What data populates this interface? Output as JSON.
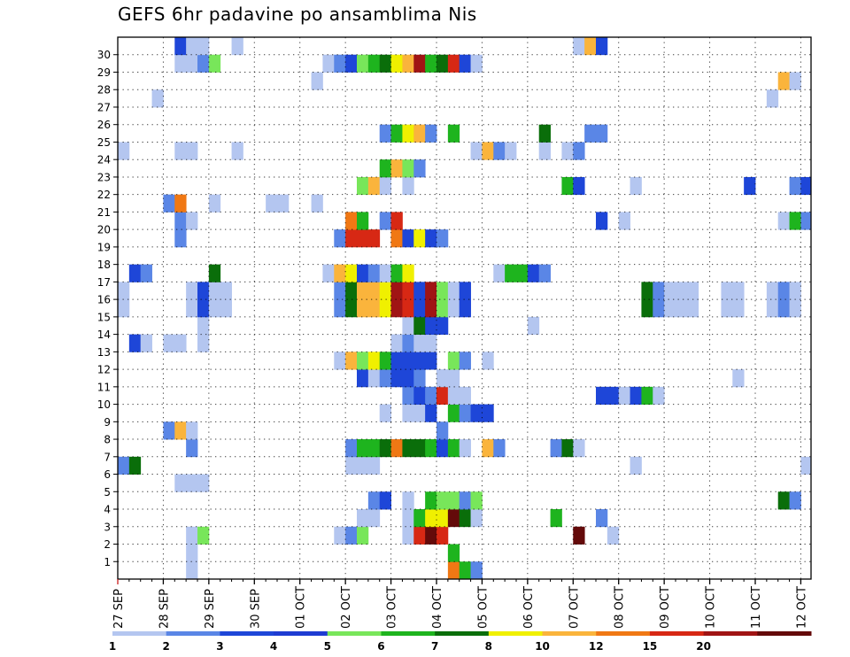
{
  "chart_data": {
    "type": "heatmap",
    "title": "GEFS 6hr padavine po ansamblima Nis",
    "y_ticks": [
      "1",
      "2",
      "3",
      "4",
      "5",
      "6",
      "7",
      "8",
      "9",
      "10",
      "11",
      "12",
      "13",
      "14",
      "15",
      "16",
      "17",
      "18",
      "19",
      "20",
      "21",
      "22",
      "23",
      "24",
      "25",
      "26",
      "27",
      "28",
      "29",
      "30"
    ],
    "x_ticks": [
      "27 SEP",
      "28 SEP",
      "29 SEP",
      "30 SEP",
      "01 OCT",
      "02 OCT",
      "03 OCT",
      "04 OCT",
      "05 OCT",
      "06 OCT",
      "07 OCT",
      "08 OCT",
      "09 OCT",
      "10 OCT",
      "11 OCT",
      "12 OCT"
    ],
    "x_step_hours": 6,
    "rows_count": 31,
    "cols_count": 61,
    "legend": {
      "labels": [
        "1",
        "2",
        "3",
        "4",
        "5",
        "6",
        "7",
        "8",
        "10",
        "12",
        "15",
        "20"
      ],
      "colors": [
        "#b4c6f0",
        "#5a86e6",
        "#1e46d8",
        "#1e3cd2",
        "#78e65a",
        "#1eb41e",
        "#0a6e0a",
        "#f0f000",
        "#fab43c",
        "#f07814",
        "#d72814",
        "#a01414",
        "#640a0a"
      ]
    },
    "color_levels": {
      "1": "#b4c6f0",
      "2": "#5a86e6",
      "3": "#1e46d8",
      "4": "#78e65a",
      "5": "#1eb41e",
      "6": "#0a6e0a",
      "7": "#f0f000",
      "8": "#fab43c",
      "9": "#f07814",
      "10": "#d72814",
      "11": "#a01414",
      "12": "#640a0a"
    },
    "cells": [
      [
        0,
        6,
        1,
        1
      ],
      [
        0,
        29,
        1,
        9
      ],
      [
        0,
        30,
        1,
        5
      ],
      [
        0,
        31,
        1,
        2
      ],
      [
        1,
        6,
        1,
        1
      ],
      [
        1,
        29,
        1,
        5
      ],
      [
        2,
        6,
        1,
        1
      ],
      [
        2,
        7,
        1,
        4
      ],
      [
        2,
        19,
        1,
        1
      ],
      [
        2,
        20,
        1,
        2
      ],
      [
        2,
        21,
        1,
        4
      ],
      [
        2,
        25,
        1,
        1
      ],
      [
        2,
        26,
        1,
        10
      ],
      [
        2,
        27,
        1,
        12
      ],
      [
        2,
        28,
        1,
        10
      ],
      [
        2,
        40,
        1,
        12
      ],
      [
        2,
        43,
        1,
        1
      ],
      [
        3,
        21,
        1,
        1
      ],
      [
        3,
        22,
        1,
        1
      ],
      [
        3,
        25,
        1,
        1
      ],
      [
        3,
        26,
        1,
        5
      ],
      [
        3,
        27,
        1,
        7
      ],
      [
        3,
        28,
        1,
        7
      ],
      [
        3,
        29,
        1,
        12
      ],
      [
        3,
        30,
        1,
        6
      ],
      [
        3,
        31,
        1,
        1
      ],
      [
        3,
        38,
        1,
        5
      ],
      [
        3,
        42,
        1,
        2
      ],
      [
        4,
        22,
        1,
        2
      ],
      [
        4,
        23,
        1,
        3
      ],
      [
        4,
        25,
        1,
        1
      ],
      [
        4,
        27,
        1,
        5
      ],
      [
        4,
        28,
        1,
        4
      ],
      [
        4,
        29,
        1,
        4
      ],
      [
        4,
        30,
        1,
        2
      ],
      [
        4,
        31,
        1,
        4
      ],
      [
        4,
        58,
        1,
        6
      ],
      [
        4,
        59,
        1,
        2
      ],
      [
        5,
        5,
        3,
        1
      ],
      [
        6,
        0,
        1,
        2
      ],
      [
        6,
        1,
        1,
        6
      ],
      [
        6,
        20,
        3,
        1
      ],
      [
        6,
        45,
        1,
        1
      ],
      [
        6,
        60,
        1,
        1
      ],
      [
        7,
        6,
        1,
        2
      ],
      [
        7,
        20,
        1,
        2
      ],
      [
        7,
        21,
        1,
        5
      ],
      [
        7,
        22,
        1,
        5
      ],
      [
        7,
        23,
        1,
        6
      ],
      [
        7,
        24,
        1,
        9
      ],
      [
        7,
        25,
        1,
        6
      ],
      [
        7,
        26,
        1,
        6
      ],
      [
        7,
        27,
        1,
        5
      ],
      [
        7,
        28,
        1,
        3
      ],
      [
        7,
        29,
        1,
        5
      ],
      [
        7,
        30,
        1,
        1
      ],
      [
        7,
        32,
        1,
        8
      ],
      [
        7,
        33,
        1,
        2
      ],
      [
        7,
        38,
        1,
        2
      ],
      [
        7,
        39,
        1,
        6
      ],
      [
        7,
        40,
        1,
        1
      ],
      [
        8,
        4,
        1,
        2
      ],
      [
        8,
        5,
        1,
        8
      ],
      [
        8,
        6,
        1,
        1
      ],
      [
        8,
        28,
        1,
        2
      ],
      [
        9,
        23,
        1,
        1
      ],
      [
        9,
        25,
        2,
        1
      ],
      [
        9,
        27,
        1,
        3
      ],
      [
        9,
        29,
        1,
        5
      ],
      [
        9,
        30,
        1,
        2
      ],
      [
        9,
        31,
        2,
        3
      ],
      [
        10,
        25,
        1,
        2
      ],
      [
        10,
        26,
        1,
        3
      ],
      [
        10,
        27,
        1,
        2
      ],
      [
        10,
        28,
        1,
        10
      ],
      [
        10,
        29,
        2,
        1
      ],
      [
        10,
        42,
        2,
        3
      ],
      [
        10,
        44,
        1,
        1
      ],
      [
        10,
        45,
        1,
        3
      ],
      [
        10,
        46,
        1,
        5
      ],
      [
        10,
        47,
        1,
        1
      ],
      [
        11,
        21,
        1,
        3
      ],
      [
        11,
        22,
        1,
        1
      ],
      [
        11,
        23,
        1,
        2
      ],
      [
        11,
        24,
        1,
        3
      ],
      [
        11,
        25,
        1,
        3
      ],
      [
        11,
        26,
        1,
        2
      ],
      [
        11,
        28,
        2,
        1
      ],
      [
        11,
        54,
        1,
        1
      ],
      [
        12,
        19,
        1,
        1
      ],
      [
        12,
        20,
        1,
        8
      ],
      [
        12,
        21,
        1,
        4
      ],
      [
        12,
        22,
        1,
        7
      ],
      [
        12,
        23,
        1,
        5
      ],
      [
        12,
        24,
        1,
        3
      ],
      [
        12,
        25,
        3,
        3
      ],
      [
        12,
        29,
        1,
        4
      ],
      [
        12,
        30,
        1,
        2
      ],
      [
        12,
        32,
        1,
        1
      ],
      [
        13,
        1,
        1,
        3
      ],
      [
        13,
        2,
        1,
        1
      ],
      [
        13,
        4,
        2,
        1
      ],
      [
        13,
        7,
        1,
        1
      ],
      [
        13,
        24,
        1,
        1
      ],
      [
        13,
        25,
        1,
        2
      ],
      [
        13,
        26,
        2,
        1
      ],
      [
        14,
        7,
        1,
        1
      ],
      [
        14,
        25,
        1,
        1
      ],
      [
        14,
        26,
        1,
        6
      ],
      [
        14,
        27,
        2,
        3
      ],
      [
        14,
        36,
        1,
        1
      ],
      [
        15,
        0,
        1,
        1
      ],
      [
        15,
        6,
        1,
        1
      ],
      [
        15,
        7,
        1,
        3
      ],
      [
        15,
        8,
        2,
        1
      ],
      [
        15,
        19,
        1,
        2
      ],
      [
        15,
        20,
        1,
        6
      ],
      [
        15,
        21,
        2,
        8
      ],
      [
        15,
        23,
        1,
        7
      ],
      [
        15,
        24,
        1,
        11
      ],
      [
        15,
        25,
        1,
        10
      ],
      [
        15,
        26,
        1,
        3
      ],
      [
        15,
        27,
        1,
        11
      ],
      [
        15,
        28,
        1,
        4
      ],
      [
        15,
        29,
        1,
        1
      ],
      [
        15,
        30,
        1,
        3
      ],
      [
        15,
        46,
        1,
        6
      ],
      [
        15,
        47,
        1,
        2
      ],
      [
        15,
        48,
        3,
        1
      ],
      [
        15,
        53,
        2,
        1
      ],
      [
        15,
        57,
        1,
        1
      ],
      [
        15,
        58,
        1,
        2
      ],
      [
        15,
        59,
        1,
        1
      ],
      [
        16,
        0,
        1,
        1
      ],
      [
        16,
        6,
        1,
        1
      ],
      [
        16,
        7,
        1,
        3
      ],
      [
        16,
        8,
        2,
        1
      ],
      [
        16,
        19,
        1,
        2
      ],
      [
        16,
        20,
        1,
        6
      ],
      [
        16,
        21,
        2,
        8
      ],
      [
        16,
        23,
        1,
        7
      ],
      [
        16,
        24,
        1,
        11
      ],
      [
        16,
        25,
        1,
        10
      ],
      [
        16,
        26,
        1,
        3
      ],
      [
        16,
        27,
        1,
        11
      ],
      [
        16,
        28,
        1,
        4
      ],
      [
        16,
        29,
        1,
        1
      ],
      [
        16,
        30,
        1,
        3
      ],
      [
        16,
        46,
        1,
        6
      ],
      [
        16,
        47,
        1,
        2
      ],
      [
        16,
        48,
        3,
        1
      ],
      [
        16,
        53,
        2,
        1
      ],
      [
        16,
        57,
        1,
        1
      ],
      [
        16,
        58,
        1,
        2
      ],
      [
        16,
        59,
        1,
        1
      ],
      [
        17,
        1,
        1,
        3
      ],
      [
        17,
        2,
        1,
        2
      ],
      [
        17,
        8,
        1,
        6
      ],
      [
        17,
        18,
        1,
        1
      ],
      [
        17,
        19,
        1,
        8
      ],
      [
        17,
        20,
        1,
        7
      ],
      [
        17,
        21,
        1,
        3
      ],
      [
        17,
        22,
        1,
        2
      ],
      [
        17,
        23,
        1,
        1
      ],
      [
        17,
        24,
        1,
        5
      ],
      [
        17,
        25,
        1,
        7
      ],
      [
        17,
        33,
        1,
        1
      ],
      [
        17,
        34,
        2,
        5
      ],
      [
        17,
        36,
        1,
        3
      ],
      [
        17,
        37,
        1,
        2
      ],
      [
        19,
        5,
        1,
        2
      ],
      [
        19,
        19,
        1,
        2
      ],
      [
        19,
        20,
        3,
        10
      ],
      [
        19,
        24,
        1,
        9
      ],
      [
        19,
        25,
        1,
        3
      ],
      [
        19,
        26,
        1,
        7
      ],
      [
        19,
        27,
        1,
        3
      ],
      [
        19,
        28,
        1,
        2
      ],
      [
        20,
        5,
        1,
        2
      ],
      [
        20,
        6,
        1,
        1
      ],
      [
        20,
        20,
        1,
        9
      ],
      [
        20,
        21,
        1,
        5
      ],
      [
        20,
        23,
        1,
        2
      ],
      [
        20,
        24,
        1,
        10
      ],
      [
        20,
        42,
        1,
        3
      ],
      [
        20,
        44,
        1,
        1
      ],
      [
        20,
        58,
        1,
        1
      ],
      [
        20,
        59,
        1,
        5
      ],
      [
        20,
        60,
        1,
        2
      ],
      [
        21,
        4,
        1,
        2
      ],
      [
        21,
        5,
        1,
        9
      ],
      [
        21,
        8,
        1,
        1
      ],
      [
        21,
        13,
        2,
        1
      ],
      [
        21,
        17,
        1,
        1
      ],
      [
        22,
        21,
        1,
        4
      ],
      [
        22,
        22,
        1,
        8
      ],
      [
        22,
        23,
        1,
        1
      ],
      [
        22,
        25,
        1,
        1
      ],
      [
        22,
        39,
        1,
        5
      ],
      [
        22,
        40,
        1,
        3
      ],
      [
        22,
        45,
        1,
        1
      ],
      [
        22,
        55,
        1,
        3
      ],
      [
        22,
        59,
        1,
        2
      ],
      [
        22,
        60,
        1,
        3
      ],
      [
        23,
        23,
        1,
        5
      ],
      [
        23,
        24,
        1,
        8
      ],
      [
        23,
        25,
        1,
        4
      ],
      [
        23,
        26,
        1,
        2
      ],
      [
        24,
        0,
        1,
        1
      ],
      [
        24,
        5,
        2,
        1
      ],
      [
        24,
        10,
        1,
        1
      ],
      [
        24,
        31,
        1,
        1
      ],
      [
        24,
        32,
        1,
        8
      ],
      [
        24,
        33,
        1,
        2
      ],
      [
        24,
        34,
        1,
        1
      ],
      [
        24,
        37,
        1,
        1
      ],
      [
        24,
        39,
        1,
        1
      ],
      [
        24,
        40,
        1,
        2
      ],
      [
        25,
        23,
        1,
        2
      ],
      [
        25,
        24,
        1,
        5
      ],
      [
        25,
        25,
        1,
        7
      ],
      [
        25,
        26,
        1,
        8
      ],
      [
        25,
        27,
        1,
        2
      ],
      [
        25,
        29,
        1,
        5
      ],
      [
        25,
        37,
        1,
        6
      ],
      [
        25,
        41,
        2,
        2
      ],
      [
        27,
        3,
        1,
        1
      ],
      [
        27,
        57,
        1,
        1
      ],
      [
        28,
        17,
        1,
        1
      ],
      [
        28,
        58,
        1,
        8
      ],
      [
        28,
        59,
        1,
        1
      ],
      [
        29,
        5,
        2,
        1
      ],
      [
        29,
        7,
        1,
        2
      ],
      [
        29,
        8,
        1,
        4
      ],
      [
        29,
        18,
        1,
        1
      ],
      [
        29,
        19,
        1,
        2
      ],
      [
        29,
        20,
        1,
        3
      ],
      [
        29,
        21,
        1,
        4
      ],
      [
        29,
        22,
        1,
        5
      ],
      [
        29,
        23,
        1,
        6
      ],
      [
        29,
        24,
        1,
        7
      ],
      [
        29,
        25,
        1,
        8
      ],
      [
        29,
        26,
        1,
        11
      ],
      [
        29,
        27,
        1,
        5
      ],
      [
        29,
        28,
        1,
        6
      ],
      [
        29,
        29,
        1,
        10
      ],
      [
        29,
        30,
        1,
        3
      ],
      [
        29,
        31,
        1,
        1
      ],
      [
        30,
        5,
        1,
        3
      ],
      [
        30,
        6,
        1,
        1
      ],
      [
        30,
        7,
        1,
        1
      ],
      [
        30,
        10,
        1,
        1
      ],
      [
        30,
        40,
        1,
        1
      ],
      [
        30,
        41,
        1,
        8
      ],
      [
        30,
        42,
        1,
        3
      ]
    ]
  }
}
